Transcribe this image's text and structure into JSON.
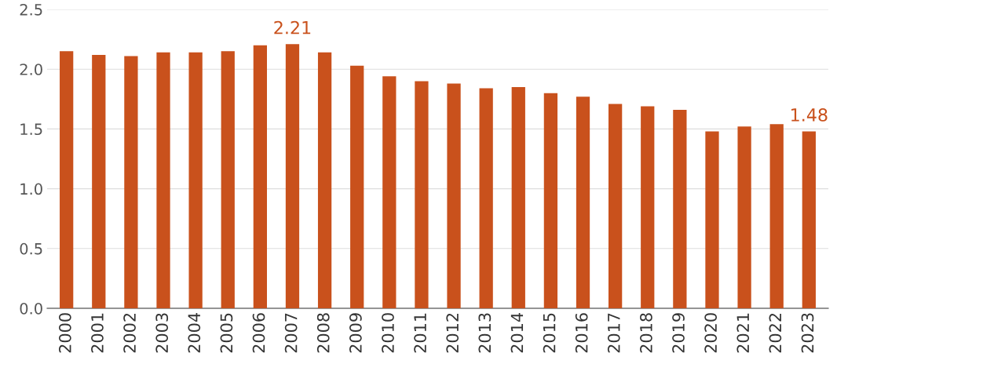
{
  "chart_data": {
    "type": "bar",
    "categories": [
      "2000",
      "2001",
      "2002",
      "2003",
      "2004",
      "2005",
      "2006",
      "2007",
      "2008",
      "2009",
      "2010",
      "2011",
      "2012",
      "2013",
      "2014",
      "2015",
      "2016",
      "2017",
      "2018",
      "2019",
      "2020",
      "2021",
      "2022",
      "2023"
    ],
    "values": [
      2.15,
      2.12,
      2.11,
      2.14,
      2.14,
      2.15,
      2.2,
      2.21,
      2.14,
      2.03,
      1.94,
      1.9,
      1.88,
      1.84,
      1.85,
      1.8,
      1.77,
      1.71,
      1.69,
      1.66,
      1.48,
      1.52,
      1.54,
      1.48
    ],
    "value_labels": [
      null,
      null,
      null,
      null,
      null,
      null,
      null,
      "2.21",
      null,
      null,
      null,
      null,
      null,
      null,
      null,
      null,
      null,
      null,
      null,
      null,
      null,
      null,
      null,
      "1.48"
    ],
    "color": "#c9511c",
    "ylim": [
      0,
      2.5
    ],
    "yticks": [
      {
        "value": 0,
        "label": "0.0"
      },
      0.5,
      {
        "value": 1,
        "label": "1.0"
      },
      1.5,
      {
        "value": 2,
        "label": "2.0"
      },
      2.5
    ],
    "grid": "y",
    "legend": false
  }
}
